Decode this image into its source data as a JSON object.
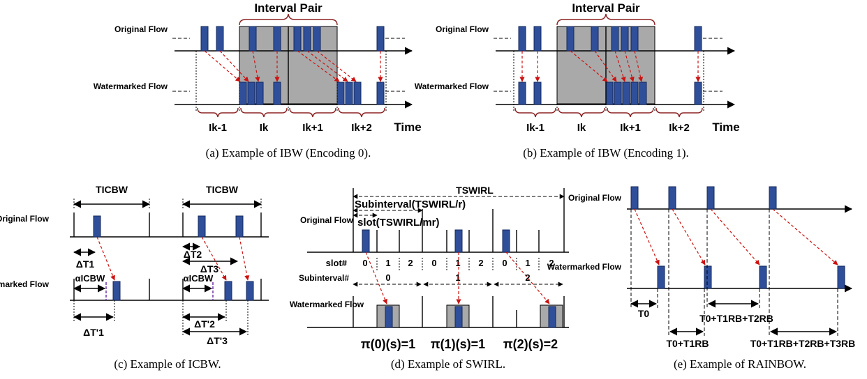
{
  "fig_a": {
    "title": "Interval Pair",
    "original_flow": "Original Flow",
    "watermarked_flow": "Watermarked Flow",
    "intervals": [
      "Ik-1",
      "Ik",
      "Ik+1",
      "Ik+2"
    ],
    "time": "Time",
    "caption": "(a) Example of IBW (Encoding 0)."
  },
  "fig_b": {
    "title": "Interval Pair",
    "original_flow": "Original Flow",
    "watermarked_flow": "Watermarked Flow",
    "intervals": [
      "Ik-1",
      "Ik",
      "Ik+1",
      "Ik+2"
    ],
    "time": "Time",
    "caption": "(b) Example of IBW (Encoding 1)."
  },
  "fig_c": {
    "t_icbw": "TICBW",
    "original_flow": "Original Flow",
    "watermarked_flow": "Watermarked Flow",
    "dt1": "ΔT1",
    "dt2": "ΔT2",
    "dt3": "ΔT3",
    "alpha": "αICBW",
    "dtp1": "ΔT'1",
    "dtp2": "ΔT'2",
    "dtp3": "ΔT'3",
    "caption": "(c) Example of ICBW."
  },
  "fig_d": {
    "t_swirl": "TSWIRL",
    "subinterval": "Subinterval(TSWIRL/r)",
    "slot": "slot(TSWIRL/mr)",
    "original_flow": "Original Flow",
    "slot_label": "slot#",
    "slots": [
      "0",
      "1",
      "2",
      "0",
      "1",
      "2",
      "0",
      "1",
      "2"
    ],
    "subinterval_label": "Subinterval#",
    "subintervals": [
      "0",
      "1",
      "2"
    ],
    "watermarked_flow": "Watermarked Flow",
    "pi0": "π(0)(s)=1",
    "pi1": "π(1)(s)=1",
    "pi2": "π(2)(s)=2",
    "caption": "(d) Example of SWIRL."
  },
  "fig_e": {
    "original_flow": "Original Flow",
    "watermarked_flow": "Watermarked Flow",
    "t0": "T0",
    "t0_t1": "T0+T1RB",
    "t0_t1_t2": "T0+T1RB+T2RB",
    "t0_t1_t2_t3": "T0+T1RB+T2RB+T3RB",
    "caption": "(e) Example of RAINBOW."
  }
}
